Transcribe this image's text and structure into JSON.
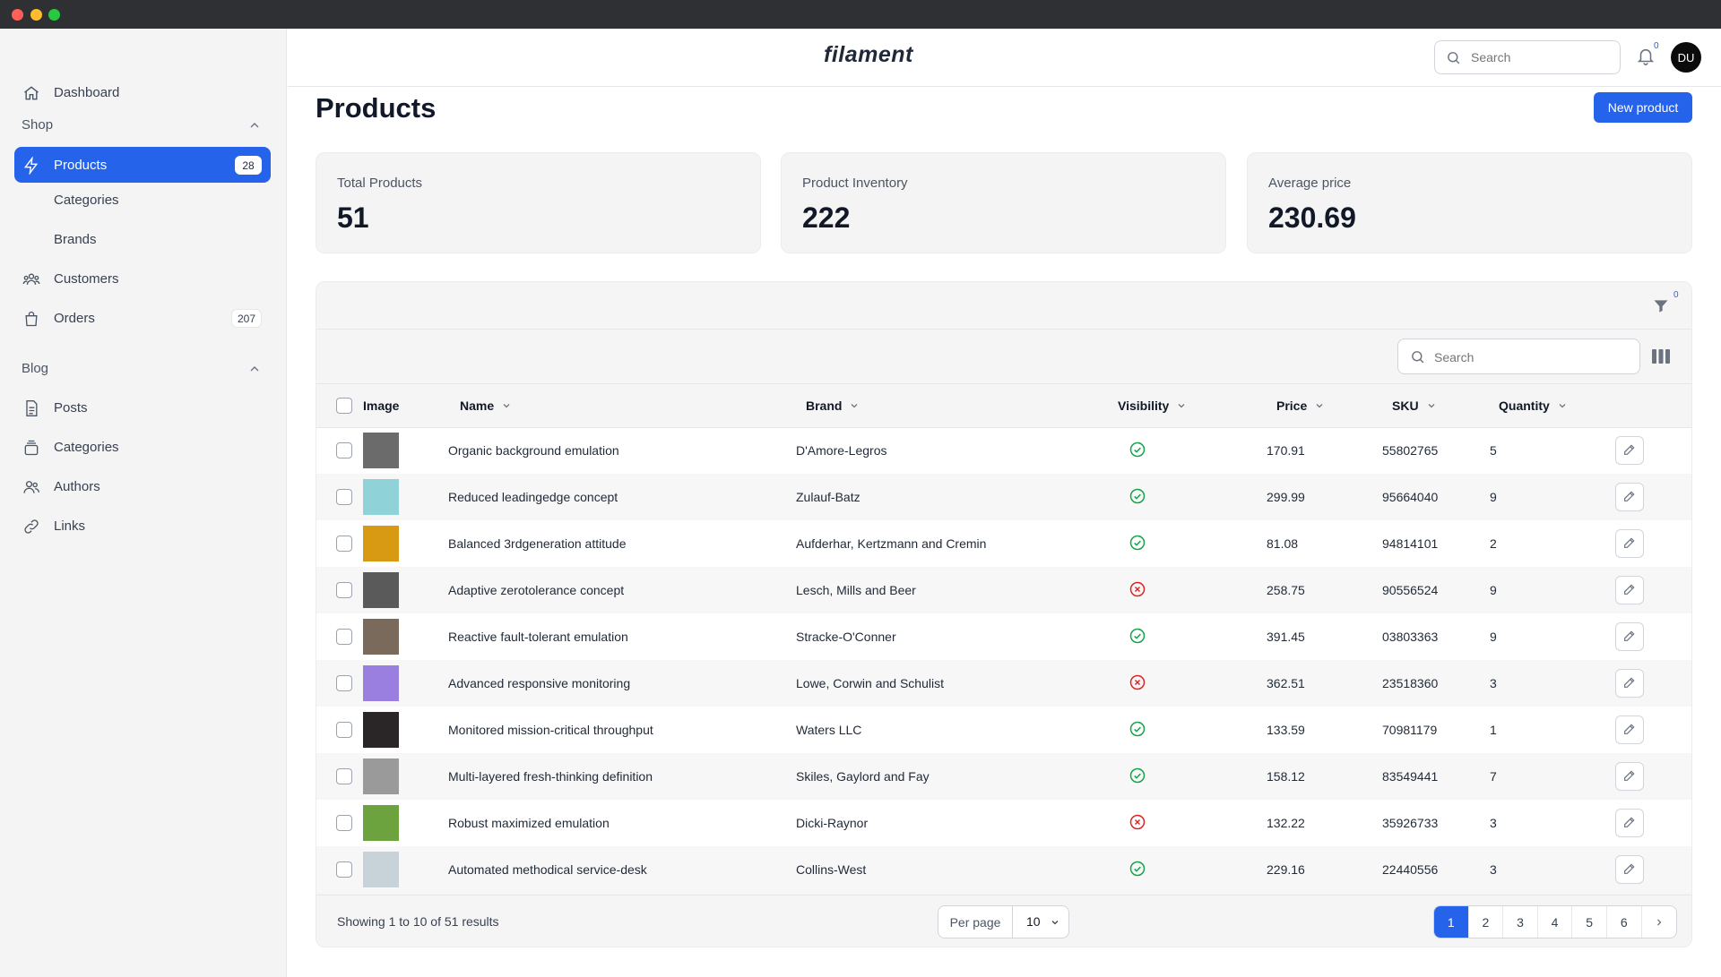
{
  "app": {
    "logo": "filament"
  },
  "sidebar": {
    "dashboard": {
      "label": "Dashboard",
      "icon": "home-icon"
    },
    "shop_group": "Shop",
    "shop_items": [
      {
        "label": "Products",
        "badge": "28",
        "icon": "bolt-icon",
        "active": true
      },
      {
        "label": "Categories"
      },
      {
        "label": "Brands"
      },
      {
        "label": "Customers",
        "icon": "users-icon"
      },
      {
        "label": "Orders",
        "badge": "207",
        "icon": "shopping-bag-icon"
      }
    ],
    "blog_group": "Blog",
    "blog_items": [
      {
        "label": "Posts",
        "icon": "document-icon"
      },
      {
        "label": "Categories",
        "icon": "stack-icon"
      },
      {
        "label": "Authors",
        "icon": "users-icon"
      },
      {
        "label": "Links",
        "icon": "link-icon"
      }
    ]
  },
  "topbar": {
    "search_placeholder": "Search",
    "notifications_count": "0",
    "avatar_initials": "DU"
  },
  "page": {
    "title": "Products",
    "new_button": "New product"
  },
  "stats": [
    {
      "label": "Total Products",
      "value": "51"
    },
    {
      "label": "Product Inventory",
      "value": "222"
    },
    {
      "label": "Average price",
      "value": "230.69"
    }
  ],
  "table": {
    "filter_count": "0",
    "search_placeholder": "Search",
    "columns": {
      "image": "Image",
      "name": "Name",
      "brand": "Brand",
      "visibility": "Visibility",
      "price": "Price",
      "sku": "SKU",
      "quantity": "Quantity"
    },
    "rows": [
      {
        "name": "Organic background emulation",
        "brand": "D'Amore-Legros",
        "visible": true,
        "price": "170.91",
        "sku": "55802765",
        "quantity": "5",
        "thumb": "#6b6b6b"
      },
      {
        "name": "Reduced leadingedge concept",
        "brand": "Zulauf-Batz",
        "visible": true,
        "price": "299.99",
        "sku": "95664040",
        "quantity": "9",
        "thumb": "#8fd3d8"
      },
      {
        "name": "Balanced 3rdgeneration attitude",
        "brand": "Aufderhar, Kertzmann and Cremin",
        "visible": true,
        "price": "81.08",
        "sku": "94814101",
        "quantity": "2",
        "thumb": "#d79a12"
      },
      {
        "name": "Adaptive zerotolerance concept",
        "brand": "Lesch, Mills and Beer",
        "visible": false,
        "price": "258.75",
        "sku": "90556524",
        "quantity": "9",
        "thumb": "#5a5a5a"
      },
      {
        "name": "Reactive fault-tolerant emulation",
        "brand": "Stracke-O'Conner",
        "visible": true,
        "price": "391.45",
        "sku": "03803363",
        "quantity": "9",
        "thumb": "#7a6a5c"
      },
      {
        "name": "Advanced responsive monitoring",
        "brand": "Lowe, Corwin and Schulist",
        "visible": false,
        "price": "362.51",
        "sku": "23518360",
        "quantity": "3",
        "thumb": "#9a7fe0"
      },
      {
        "name": "Monitored mission-critical throughput",
        "brand": "Waters LLC",
        "visible": true,
        "price": "133.59",
        "sku": "70981179",
        "quantity": "1",
        "thumb": "#2a2526"
      },
      {
        "name": "Multi-layered fresh-thinking definition",
        "brand": "Skiles, Gaylord and Fay",
        "visible": true,
        "price": "158.12",
        "sku": "83549441",
        "quantity": "7",
        "thumb": "#9a9a9a"
      },
      {
        "name": "Robust maximized emulation",
        "brand": "Dicki-Raynor",
        "visible": false,
        "price": "132.22",
        "sku": "35926733",
        "quantity": "3",
        "thumb": "#6ca33f"
      },
      {
        "name": "Automated methodical service-desk",
        "brand": "Collins-West",
        "visible": true,
        "price": "229.16",
        "sku": "22440556",
        "quantity": "3",
        "thumb": "#c7d3d8"
      }
    ],
    "footer": {
      "showing": "Showing 1 to 10 of 51 results",
      "per_page_label": "Per page",
      "per_page_value": "10",
      "pages": [
        "1",
        "2",
        "3",
        "4",
        "5",
        "6"
      ],
      "active_page": "1"
    }
  },
  "colors": {
    "accent": "#2563eb",
    "visible_ok": "#16a34a",
    "visible_no": "#dc2626"
  }
}
